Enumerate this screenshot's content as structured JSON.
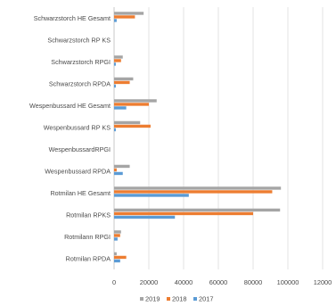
{
  "chart_data": {
    "type": "bar",
    "orientation": "horizontal",
    "categories": [
      "Schwarzstorch HE Gesamt",
      "Schwarzstorch RP KS",
      "Schwarzstorch RPGI",
      "Schwarzstorch RPDA",
      "Wespenbussard HE Gesamt",
      "Wespenbussard RP KS",
      "WespenbussardRPGI",
      "Wespenbussard RPDA",
      "Rotmilan HE Gesamt",
      "Rotmilan RPKS",
      "Rotmilann RPGI",
      "Rotmilan RPDA"
    ],
    "series": [
      {
        "name": "2019",
        "color": "#a5a5a5",
        "values": [
          17000,
          0,
          5000,
          11000,
          24500,
          15000,
          0,
          9000,
          96000,
          95500,
          4000,
          1500
        ]
      },
      {
        "name": "2018",
        "color": "#ed7d31",
        "values": [
          12000,
          0,
          4000,
          9000,
          20000,
          21000,
          0,
          1500,
          91000,
          80000,
          3500,
          7000
        ]
      },
      {
        "name": "2017",
        "color": "#5b9bd5",
        "values": [
          1500,
          0,
          1000,
          1000,
          7000,
          1000,
          0,
          5000,
          43000,
          35000,
          2000,
          3500
        ]
      }
    ],
    "x_ticks": [
      "0",
      "20000",
      "40000",
      "60000",
      "80000",
      "100000",
      "12000"
    ],
    "xlim": [
      0,
      120000
    ],
    "grid": true,
    "legend_position": "bottom"
  }
}
